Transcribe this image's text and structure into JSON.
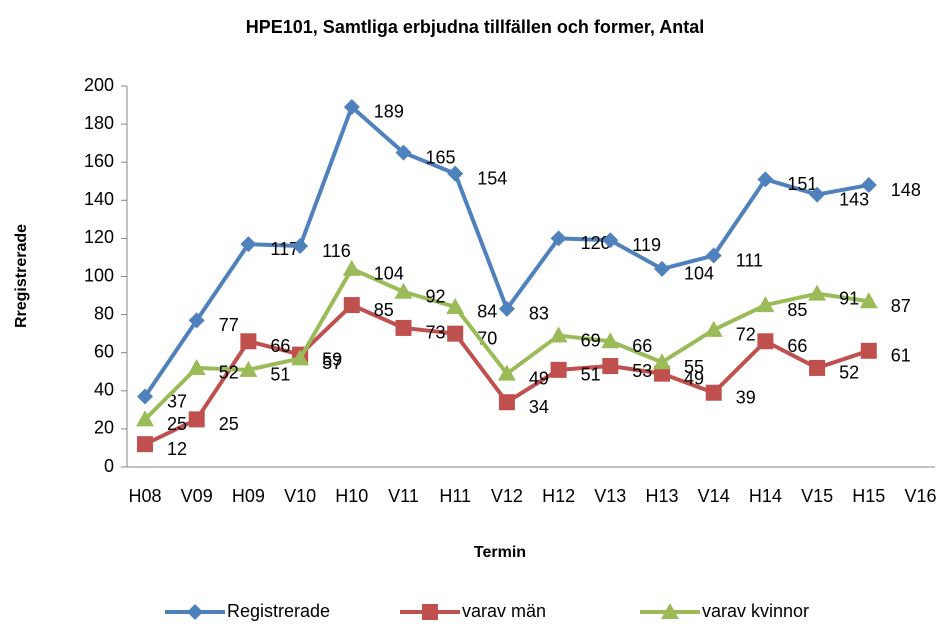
{
  "chart_data": {
    "type": "line",
    "title": "HPE101, Samtliga erbjudna tillfällen och former, Antal",
    "x_label": "Termin",
    "y_label": "Rregistrerade",
    "categories": [
      "H08",
      "V09",
      "H09",
      "V10",
      "H10",
      "V11",
      "H11",
      "V12",
      "H12",
      "V13",
      "H13",
      "V14",
      "H14",
      "V15",
      "H15",
      "V16"
    ],
    "series": [
      {
        "name": "Registrerade",
        "color": "#4f81bd",
        "marker": "diamond",
        "values": [
          37,
          77,
          117,
          116,
          189,
          165,
          154,
          83,
          120,
          119,
          104,
          111,
          151,
          143,
          148,
          null
        ]
      },
      {
        "name": "varav män",
        "color": "#c0504d",
        "marker": "square",
        "values": [
          12,
          25,
          66,
          59,
          85,
          73,
          70,
          34,
          51,
          53,
          49,
          39,
          66,
          52,
          61,
          null
        ]
      },
      {
        "name": "varav kvinnor",
        "color": "#9bbb59",
        "marker": "triangle",
        "values": [
          25,
          52,
          51,
          57,
          104,
          92,
          84,
          49,
          69,
          66,
          55,
          72,
          85,
          91,
          87,
          null
        ]
      }
    ],
    "ylim": [
      0,
      200
    ],
    "yticks": [
      0,
      20,
      40,
      60,
      80,
      100,
      120,
      140,
      160,
      180,
      200
    ],
    "grid": false,
    "legend": "bottom"
  }
}
